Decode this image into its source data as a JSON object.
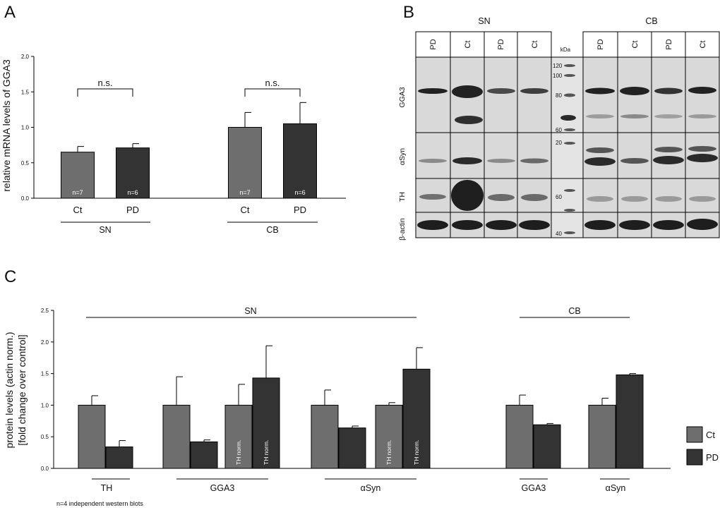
{
  "colors": {
    "ct": "#6e6e6e",
    "pd": "#333333",
    "axis": "#000000",
    "blot_bg": "#d7d7d7",
    "band": "#1a1a1a"
  },
  "panel_labels": {
    "a": "A",
    "b": "B",
    "c": "C"
  },
  "panel_a": {
    "ylabel": "relative mRNA levels of GGA3",
    "sig_labels": [
      "n.s.",
      "n.s."
    ],
    "group_labels": [
      "SN",
      "CB"
    ]
  },
  "panel_b": {
    "group_labels": [
      "SN",
      "CB"
    ],
    "lanes": [
      "PD",
      "Ct",
      "PD",
      "Ct",
      "PD",
      "Ct",
      "PD",
      "Ct"
    ],
    "kda_header": "kDa",
    "markers": [
      "120",
      "100",
      "80",
      "60",
      "20",
      "60",
      "40"
    ],
    "row_labels": [
      "GGA3",
      "αSyn",
      "TH",
      "β-actin"
    ]
  },
  "panel_c": {
    "ylabel_line1": "protein levels (actin norm.)",
    "ylabel_line2": "[fold change over control]",
    "top_groups": [
      "SN",
      "CB"
    ],
    "bottom_groups": [
      "TH",
      "GGA3",
      "αSyn",
      "GGA3",
      "αSyn"
    ],
    "note": "n=4 independent western blots",
    "legend": [
      {
        "key": "ct",
        "label": "Ct"
      },
      {
        "key": "pd",
        "label": "PD"
      }
    ]
  },
  "chart_data": [
    {
      "type": "bar",
      "panel": "A",
      "ylabel": "relative mRNA levels of GGA3",
      "ylim": [
        0,
        2.0
      ],
      "yticks": [
        "0.0",
        "0.5",
        "1.0",
        "1.5",
        "2.0"
      ],
      "groups": [
        "SN",
        "CB"
      ],
      "bars": [
        {
          "category": "Ct",
          "group": "SN",
          "series": "ct",
          "value": 0.65,
          "err": 0.08,
          "n": "n=7"
        },
        {
          "category": "PD",
          "group": "SN",
          "series": "pd",
          "value": 0.71,
          "err": 0.06,
          "n": "n=6"
        },
        {
          "category": "Ct",
          "group": "CB",
          "series": "ct",
          "value": 1.0,
          "err": 0.21,
          "n": "n=7"
        },
        {
          "category": "PD",
          "group": "CB",
          "series": "pd",
          "value": 1.05,
          "err": 0.3,
          "n": "n=6"
        }
      ]
    },
    {
      "type": "bar",
      "panel": "C",
      "ylabel": "protein levels (actin norm.) [fold change over control]",
      "ylim": [
        0,
        2.5
      ],
      "yticks": [
        "0.0",
        "0.5",
        "1.0",
        "1.5",
        "2.0",
        "2.5"
      ],
      "series": [
        {
          "name": "Ct",
          "key": "ct"
        },
        {
          "name": "PD",
          "key": "pd"
        }
      ],
      "bars": [
        {
          "group": "SN",
          "target": "TH",
          "series": "ct",
          "value": 1.0,
          "err": 0.15
        },
        {
          "group": "SN",
          "target": "TH",
          "series": "pd",
          "value": 0.34,
          "err": 0.1
        },
        {
          "group": "SN",
          "target": "GGA3",
          "series": "ct",
          "value": 1.0,
          "err": 0.45
        },
        {
          "group": "SN",
          "target": "GGA3",
          "series": "pd",
          "value": 0.42,
          "err": 0.03
        },
        {
          "group": "SN",
          "target": "GGA3",
          "series": "ct",
          "value": 1.0,
          "err": 0.33,
          "label": "TH norm."
        },
        {
          "group": "SN",
          "target": "GGA3",
          "series": "pd",
          "value": 1.43,
          "err": 0.51,
          "label": "TH norm."
        },
        {
          "group": "SN",
          "target": "αSyn",
          "series": "ct",
          "value": 1.0,
          "err": 0.24
        },
        {
          "group": "SN",
          "target": "αSyn",
          "series": "pd",
          "value": 0.64,
          "err": 0.03
        },
        {
          "group": "SN",
          "target": "αSyn",
          "series": "ct",
          "value": 1.0,
          "err": 0.04,
          "label": "TH norm."
        },
        {
          "group": "SN",
          "target": "αSyn",
          "series": "pd",
          "value": 1.57,
          "err": 0.34,
          "label": "TH norm."
        },
        {
          "group": "CB",
          "target": "GGA3",
          "series": "ct",
          "value": 1.0,
          "err": 0.16
        },
        {
          "group": "CB",
          "target": "GGA3",
          "series": "pd",
          "value": 0.69,
          "err": 0.02
        },
        {
          "group": "CB",
          "target": "αSyn",
          "series": "ct",
          "value": 1.0,
          "err": 0.11
        },
        {
          "group": "CB",
          "target": "αSyn",
          "series": "pd",
          "value": 1.48,
          "err": 0.02
        }
      ]
    }
  ]
}
